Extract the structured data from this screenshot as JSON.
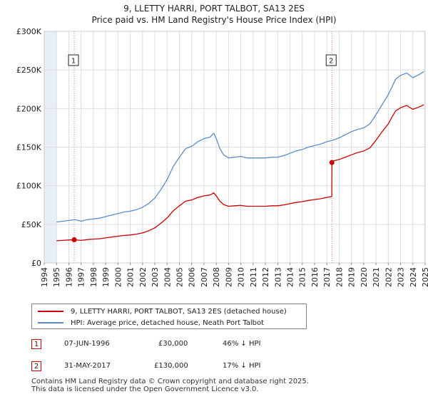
{
  "title_line1": "9, LLETTY HARRI, PORT TALBOT, SA13 2ES",
  "title_line2": "Price paid vs. HM Land Registry's House Price Index (HPI)",
  "colors": {
    "property": "#cc0000",
    "hpi": "#5b8cc9",
    "grid": "#dddddd",
    "shade": "#e8eef7"
  },
  "legend": {
    "property": "9, LLETTY HARRI, PORT TALBOT, SA13 2ES (detached house)",
    "hpi": "HPI: Average price, detached house, Neath Port Talbot"
  },
  "transactions": [
    {
      "num": "1",
      "date": "07-JUN-1996",
      "price": "£30,000",
      "hpi": "46% ↓ HPI"
    },
    {
      "num": "2",
      "date": "31-MAY-2017",
      "price": "£130,000",
      "hpi": "17% ↓ HPI"
    }
  ],
  "footer_line1": "Contains HM Land Registry data © Crown copyright and database right 2025.",
  "footer_line2": "This data is licensed under the Open Government Licence v3.0.",
  "chart_data": {
    "type": "line",
    "title": "9, LLETTY HARRI, PORT TALBOT, SA13 2ES — Price paid vs. HM Land Registry's House Price Index (HPI)",
    "xlim": [
      1994,
      2025
    ],
    "ylim": [
      0,
      300000
    ],
    "x_ticks": [
      "1994",
      "1995",
      "1996",
      "1997",
      "1998",
      "1999",
      "2000",
      "2001",
      "2002",
      "2003",
      "2004",
      "2005",
      "2006",
      "2007",
      "2008",
      "2009",
      "2010",
      "2011",
      "2012",
      "2013",
      "2014",
      "2015",
      "2016",
      "2017",
      "2018",
      "2019",
      "2020",
      "2021",
      "2022",
      "2023",
      "2024",
      "2025"
    ],
    "y_ticks": [
      {
        "value": 0,
        "label": "£0"
      },
      {
        "value": 50000,
        "label": "£50K"
      },
      {
        "value": 100000,
        "label": "£100K"
      },
      {
        "value": 150000,
        "label": "£150K"
      },
      {
        "value": 200000,
        "label": "£200K"
      },
      {
        "value": 250000,
        "label": "£250K"
      },
      {
        "value": 300000,
        "label": "£300K"
      }
    ],
    "series": [
      {
        "name": "HPI: Average price, detached house, Neath Port Talbot",
        "color": "#5b8cc9",
        "x": [
          1995.0,
          1995.5,
          1996.0,
          1996.5,
          1997.0,
          1997.5,
          1998.0,
          1998.5,
          1999.0,
          1999.5,
          2000.0,
          2000.5,
          2001.0,
          2001.5,
          2002.0,
          2002.5,
          2003.0,
          2003.5,
          2004.0,
          2004.5,
          2005.0,
          2005.5,
          2006.0,
          2006.5,
          2007.0,
          2007.5,
          2007.8,
          2008.0,
          2008.3,
          2008.6,
          2009.0,
          2009.5,
          2010.0,
          2010.5,
          2011.0,
          2011.5,
          2012.0,
          2012.5,
          2013.0,
          2013.5,
          2014.0,
          2014.5,
          2015.0,
          2015.5,
          2016.0,
          2016.5,
          2017.0,
          2017.5,
          2018.0,
          2018.5,
          2019.0,
          2019.5,
          2020.0,
          2020.5,
          2021.0,
          2021.5,
          2022.0,
          2022.3,
          2022.6,
          2023.0,
          2023.5,
          2024.0,
          2024.5,
          2024.9
        ],
        "y": [
          53000,
          54000,
          55000,
          56000,
          54000,
          56000,
          57000,
          58000,
          60000,
          62000,
          64000,
          66000,
          67000,
          69000,
          72000,
          77000,
          84000,
          95000,
          108000,
          125000,
          137000,
          148000,
          151000,
          157000,
          161000,
          163000,
          168000,
          161000,
          148000,
          140000,
          136000,
          137000,
          138000,
          136000,
          136000,
          136000,
          136000,
          137000,
          137000,
          139000,
          142000,
          145000,
          147000,
          150000,
          152000,
          154000,
          157000,
          159000,
          162000,
          166000,
          170000,
          173000,
          175000,
          180000,
          192000,
          205000,
          218000,
          228000,
          238000,
          243000,
          246000,
          240000,
          244000,
          248000
        ]
      },
      {
        "name": "9, LLETTY HARRI, PORT TALBOT, SA13 2ES (detached house)",
        "color": "#cc0000",
        "x": [
          1995.0,
          1995.5,
          1996.0,
          1996.44,
          1997.0,
          1997.5,
          1998.0,
          1998.5,
          1999.0,
          1999.5,
          2000.0,
          2000.5,
          2001.0,
          2001.5,
          2002.0,
          2002.5,
          2003.0,
          2003.5,
          2004.0,
          2004.5,
          2005.0,
          2005.5,
          2006.0,
          2006.5,
          2007.0,
          2007.5,
          2007.8,
          2008.0,
          2008.3,
          2008.6,
          2009.0,
          2009.5,
          2010.0,
          2010.5,
          2011.0,
          2011.5,
          2012.0,
          2012.5,
          2013.0,
          2013.5,
          2014.0,
          2014.5,
          2015.0,
          2015.5,
          2016.0,
          2016.5,
          2017.0,
          2017.4,
          2017.41,
          2017.5,
          2018.0,
          2018.5,
          2019.0,
          2019.5,
          2020.0,
          2020.5,
          2021.0,
          2021.5,
          2022.0,
          2022.3,
          2022.6,
          2023.0,
          2023.5,
          2024.0,
          2024.5,
          2024.9
        ],
        "y": [
          28700,
          29200,
          29700,
          30000,
          29200,
          30200,
          30800,
          31300,
          32400,
          33500,
          34600,
          35600,
          36200,
          37300,
          38900,
          41600,
          45400,
          51300,
          58300,
          67500,
          74000,
          79900,
          81500,
          84800,
          86900,
          88000,
          90700,
          86900,
          79900,
          75600,
          73400,
          74000,
          74500,
          73400,
          73400,
          73400,
          73400,
          74000,
          74000,
          75100,
          76700,
          78300,
          79400,
          81000,
          82100,
          83200,
          84800,
          85900,
          130000,
          132000,
          134000,
          137000,
          140000,
          143000,
          145000,
          149000,
          159000,
          170000,
          180000,
          189000,
          197000,
          201000,
          204000,
          199000,
          202000,
          205000
        ]
      }
    ],
    "annotations": [
      {
        "label": "1",
        "x": 1996.44,
        "y": 30000
      },
      {
        "label": "2",
        "x": 2017.41,
        "y": 130000
      }
    ],
    "xlabel": "",
    "ylabel": ""
  }
}
